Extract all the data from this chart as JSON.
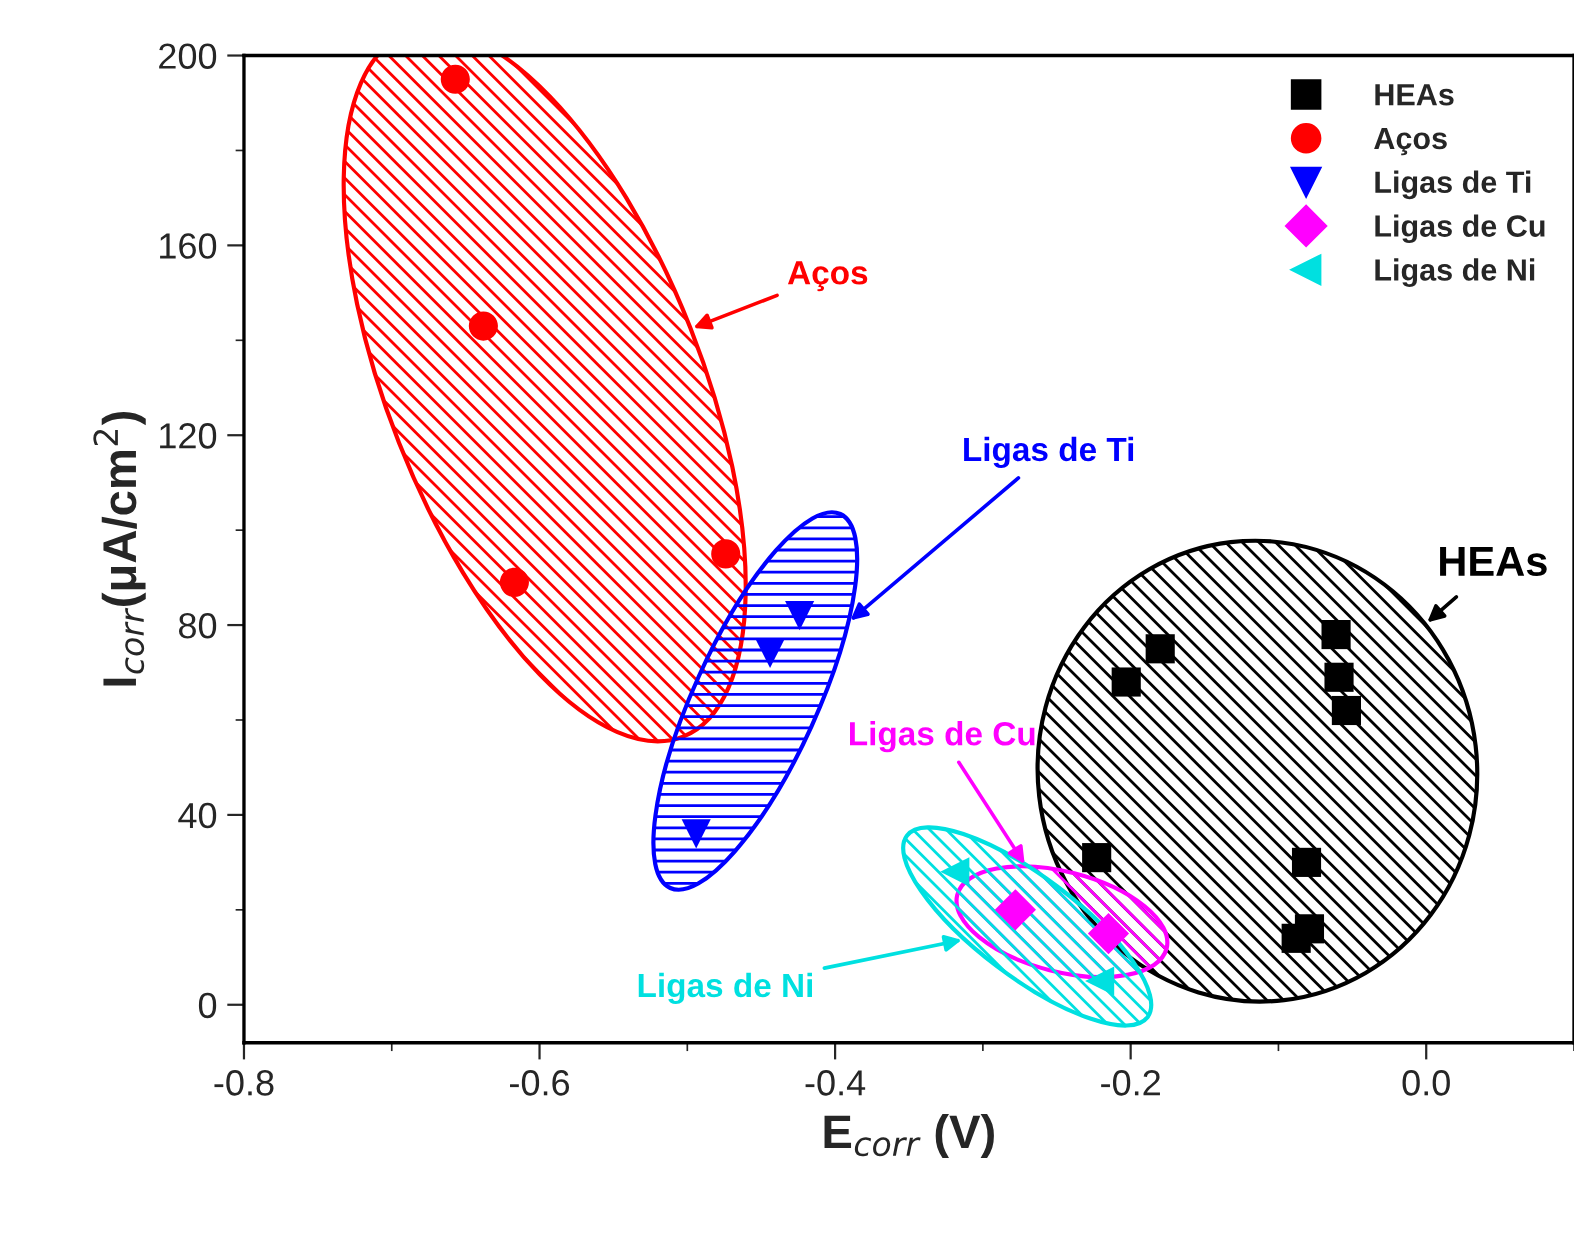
{
  "chart_data": {
    "type": "scatter",
    "xlabel": "E$_{corr}$ (V)",
    "ylabel": "I$_{corr}$(μA/cm$^{2}$)",
    "xlim": [
      -0.8,
      0.1
    ],
    "ylim": [
      -8,
      200
    ],
    "xticks": [
      -0.8,
      -0.6,
      -0.4,
      -0.2,
      {
        "value": 0,
        "label": "0.0"
      }
    ],
    "yticks": [
      0,
      40,
      80,
      120,
      160,
      200
    ],
    "legend": "top right",
    "grid": false,
    "series": [
      {
        "name": "HEAs",
        "color": "#000000",
        "marker": "square",
        "x": [
          -0.18,
          -0.203,
          -0.061,
          -0.059,
          -0.054,
          -0.223,
          -0.081,
          -0.079,
          -0.088
        ],
        "values": [
          75,
          68,
          78,
          69,
          62,
          31,
          30,
          16,
          14
        ]
      },
      {
        "name": "Aços",
        "color": "#ff0000",
        "marker": "circle",
        "x": [
          -0.657,
          -0.638,
          -0.617,
          -0.474
        ],
        "values": [
          195,
          143,
          89,
          95
        ]
      },
      {
        "name": "Ligas de Ti",
        "color": "#0000ff",
        "marker": "triangle-down",
        "x": [
          -0.494,
          -0.444,
          -0.424
        ],
        "values": [
          36,
          74,
          82
        ]
      },
      {
        "name": "Ligas de Cu",
        "color": "#ff00ff",
        "marker": "diamond",
        "x": [
          -0.278,
          -0.215
        ],
        "values": [
          20,
          15
        ]
      },
      {
        "name": "Ligas de Ni",
        "color": "#00e0e0",
        "marker": "triangle-left",
        "x": [
          -0.319,
          -0.221
        ],
        "values": [
          28,
          5
        ]
      }
    ],
    "annotations": [
      "HEAs",
      "Aços",
      "Ligas de Ti",
      "Ligas de Cu",
      "Ligas de Ni"
    ]
  }
}
